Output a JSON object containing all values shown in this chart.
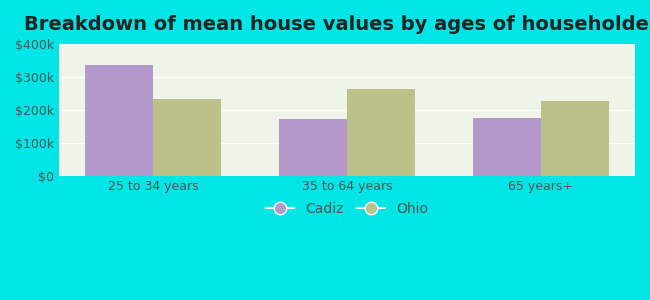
{
  "title": "Breakdown of mean house values by ages of householders",
  "categories": [
    "25 to 34 years",
    "35 to 64 years",
    "65 years+"
  ],
  "cadiz_values": [
    335000,
    172000,
    175000
  ],
  "ohio_values": [
    232000,
    262000,
    225000
  ],
  "cadiz_color": "#b399cc",
  "ohio_color": "#bcc18a",
  "background_outer": "#00e5e5",
  "background_inner": "#eef5e8",
  "ylim": [
    0,
    400000
  ],
  "yticks": [
    0,
    100000,
    200000,
    300000,
    400000
  ],
  "ytick_labels": [
    "$0",
    "$100k",
    "$200k",
    "$300k",
    "$400k"
  ],
  "bar_width": 0.35,
  "legend_labels": [
    "Cadiz",
    "Ohio"
  ],
  "title_fontsize": 14,
  "tick_fontsize": 9,
  "legend_fontsize": 10
}
